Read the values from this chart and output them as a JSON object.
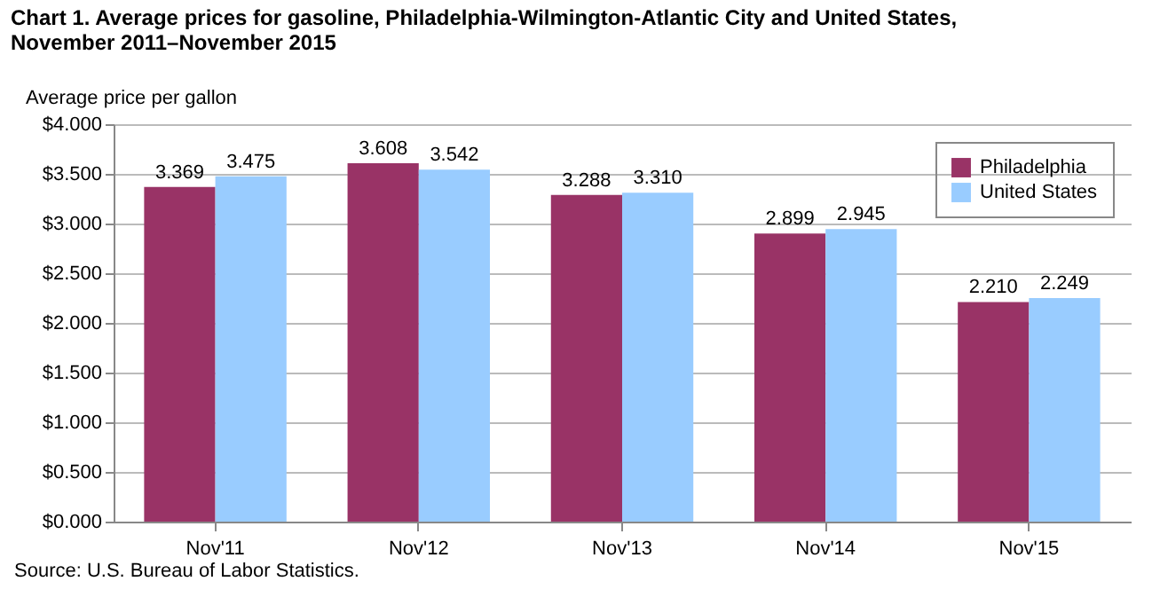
{
  "chart_data": {
    "type": "bar",
    "title": "Chart 1. Average prices for gasoline, Philadelphia-Wilmington-Atlantic City and United States, November 2011–November 2015",
    "ylabel": "Average price per gallon",
    "annotations": [
      "Source: U.S. Bureau of Labor Statistics."
    ],
    "categories": [
      "Nov'11",
      "Nov'12",
      "Nov'13",
      "Nov'14",
      "Nov'15"
    ],
    "series": [
      {
        "name": "Philadelphia",
        "color": "#993366",
        "values": [
          3.369,
          3.608,
          3.288,
          2.899,
          2.21
        ],
        "value_labels": [
          "3.369",
          "3.608",
          "3.288",
          "2.899",
          "2.210"
        ]
      },
      {
        "name": "United States",
        "color": "#99ccff",
        "values": [
          3.475,
          3.542,
          3.31,
          2.945,
          2.249
        ],
        "value_labels": [
          "3.475",
          "3.542",
          "3.310",
          "2.945",
          "2.249"
        ]
      }
    ],
    "ylim": [
      0,
      4
    ],
    "yticks": [
      {
        "value": 0,
        "label": "$0.000"
      },
      {
        "value": 0.5,
        "label": "$0.500"
      },
      {
        "value": 1,
        "label": "$1.000"
      },
      {
        "value": 1.5,
        "label": "$1.500"
      },
      {
        "value": 2,
        "label": "$2.000"
      },
      {
        "value": 2.5,
        "label": "$2.500"
      },
      {
        "value": 3,
        "label": "$3.000"
      },
      {
        "value": 3.5,
        "label": "$3.500"
      },
      {
        "value": 4,
        "label": "$4.000"
      }
    ],
    "grid": "y",
    "legend": "top right"
  }
}
